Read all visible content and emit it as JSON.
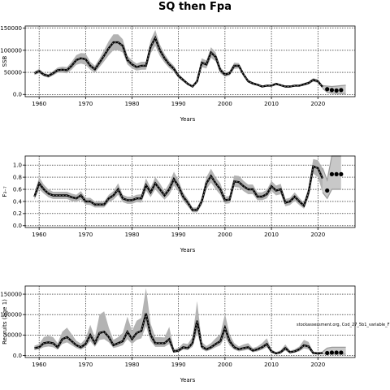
{
  "figure": {
    "title": "SQ then Fpa",
    "watermark": "stockassessment.org, Cod_27_5b1_variable_F"
  },
  "chart_data": [
    {
      "type": "line",
      "name": "ssb-panel",
      "xlabel": "Years",
      "ylabel": "SSB",
      "xlim": [
        1957,
        2028
      ],
      "ylim": [
        -5000,
        155000
      ],
      "xticks": [
        1960,
        1970,
        1980,
        1990,
        2000,
        2010,
        2020
      ],
      "yticks": [
        0,
        50000,
        100000,
        150000
      ],
      "grid": true,
      "x": [
        1959,
        1960,
        1961,
        1962,
        1963,
        1964,
        1965,
        1966,
        1967,
        1968,
        1969,
        1970,
        1971,
        1972,
        1973,
        1974,
        1975,
        1976,
        1977,
        1978,
        1979,
        1980,
        1981,
        1982,
        1983,
        1984,
        1985,
        1986,
        1987,
        1988,
        1989,
        1990,
        1991,
        1992,
        1993,
        1994,
        1995,
        1996,
        1997,
        1998,
        1999,
        2000,
        2001,
        2002,
        2003,
        2004,
        2005,
        2006,
        2007,
        2008,
        2009,
        2010,
        2011,
        2012,
        2013,
        2014,
        2015,
        2016,
        2017,
        2018,
        2019,
        2020,
        2021
      ],
      "estimate": [
        48000,
        53000,
        45000,
        42000,
        48000,
        55000,
        56000,
        55000,
        65000,
        78000,
        82000,
        80000,
        65000,
        57000,
        72000,
        88000,
        105000,
        118000,
        118000,
        110000,
        78000,
        68000,
        62000,
        65000,
        65000,
        108000,
        128000,
        100000,
        82000,
        68000,
        58000,
        42000,
        33000,
        24000,
        18000,
        30000,
        72000,
        68000,
        95000,
        85000,
        55000,
        45000,
        48000,
        65000,
        65000,
        45000,
        30000,
        25000,
        22000,
        18000,
        20000,
        20000,
        24000,
        21000,
        18000,
        18000,
        20000,
        20000,
        23000,
        26000,
        33000,
        30000,
        17000
      ],
      "lower": [
        44000,
        48000,
        41000,
        38000,
        43000,
        49000,
        49000,
        48000,
        56000,
        67000,
        70000,
        67000,
        56000,
        49000,
        62000,
        75000,
        89000,
        100000,
        100000,
        95000,
        68000,
        59000,
        54000,
        56000,
        56000,
        93000,
        110000,
        87000,
        72000,
        60000,
        51000,
        37000,
        29000,
        21000,
        16000,
        26000,
        62000,
        59000,
        83000,
        75000,
        48000,
        40000,
        43000,
        58000,
        59000,
        41000,
        27000,
        22000,
        20000,
        16000,
        18000,
        18000,
        22000,
        19000,
        16000,
        16000,
        18000,
        18000,
        20000,
        23000,
        29000,
        26000,
        14000
      ],
      "upper": [
        52000,
        58000,
        49000,
        46000,
        53000,
        61000,
        63000,
        62000,
        74000,
        89000,
        94000,
        93000,
        74000,
        65000,
        82000,
        101000,
        121000,
        136000,
        136000,
        125000,
        88000,
        77000,
        70000,
        74000,
        74000,
        123000,
        146000,
        113000,
        92000,
        76000,
        65000,
        47000,
        37000,
        27000,
        20000,
        34000,
        82000,
        77000,
        107000,
        95000,
        62000,
        50000,
        53000,
        72000,
        71000,
        49000,
        33000,
        28000,
        24000,
        20000,
        22000,
        22000,
        26000,
        23000,
        20000,
        20000,
        22000,
        22000,
        26000,
        29000,
        37000,
        34000,
        20000
      ],
      "forecast": {
        "x": [
          2021,
          2022,
          2023,
          2024,
          2025,
          2026
        ],
        "median": [
          17000,
          12000,
          10000,
          9000,
          10000,
          11000
        ],
        "lower": [
          14000,
          5000,
          3000,
          2000,
          2000,
          2000
        ],
        "upper": [
          20000,
          19000,
          18000,
          19000,
          20000,
          21000
        ],
        "points_x": [
          2022,
          2023,
          2024,
          2025
        ],
        "points_y": [
          12000,
          10000,
          9000,
          10000
        ]
      }
    },
    {
      "type": "line",
      "name": "f-panel",
      "xlabel": "Years",
      "ylabel": "F₃₋₇",
      "xlim": [
        1957,
        2028
      ],
      "ylim": [
        -0.03,
        1.15
      ],
      "xticks": [
        1960,
        1970,
        1980,
        1990,
        2000,
        2010,
        2020
      ],
      "yticks": [
        0.0,
        0.2,
        0.4,
        0.6,
        0.8,
        1.0
      ],
      "grid": true,
      "x": [
        1959,
        1960,
        1961,
        1962,
        1963,
        1964,
        1965,
        1966,
        1967,
        1968,
        1969,
        1970,
        1971,
        1972,
        1973,
        1974,
        1975,
        1976,
        1977,
        1978,
        1979,
        1980,
        1981,
        1982,
        1983,
        1984,
        1985,
        1986,
        1987,
        1988,
        1989,
        1990,
        1991,
        1992,
        1993,
        1994,
        1995,
        1996,
        1997,
        1998,
        1999,
        2000,
        2001,
        2002,
        2003,
        2004,
        2005,
        2006,
        2007,
        2008,
        2009,
        2010,
        2011,
        2012,
        2013,
        2014,
        2015,
        2016,
        2017,
        2018,
        2019,
        2020,
        2021
      ],
      "estimate": [
        0.48,
        0.7,
        0.6,
        0.53,
        0.5,
        0.5,
        0.5,
        0.5,
        0.47,
        0.45,
        0.5,
        0.4,
        0.4,
        0.35,
        0.35,
        0.35,
        0.45,
        0.5,
        0.6,
        0.45,
        0.42,
        0.42,
        0.45,
        0.45,
        0.67,
        0.55,
        0.7,
        0.6,
        0.5,
        0.6,
        0.77,
        0.65,
        0.48,
        0.38,
        0.26,
        0.26,
        0.4,
        0.7,
        0.82,
        0.7,
        0.6,
        0.42,
        0.43,
        0.73,
        0.72,
        0.65,
        0.6,
        0.6,
        0.48,
        0.48,
        0.52,
        0.65,
        0.58,
        0.6,
        0.38,
        0.4,
        0.48,
        0.4,
        0.33,
        0.55,
        0.98,
        0.95,
        0.78
      ],
      "lower": [
        0.43,
        0.6,
        0.53,
        0.47,
        0.44,
        0.44,
        0.44,
        0.44,
        0.41,
        0.39,
        0.43,
        0.35,
        0.34,
        0.3,
        0.3,
        0.3,
        0.39,
        0.43,
        0.51,
        0.39,
        0.36,
        0.36,
        0.39,
        0.38,
        0.58,
        0.47,
        0.6,
        0.51,
        0.43,
        0.51,
        0.66,
        0.56,
        0.41,
        0.32,
        0.22,
        0.22,
        0.34,
        0.6,
        0.71,
        0.6,
        0.51,
        0.36,
        0.37,
        0.64,
        0.63,
        0.57,
        0.52,
        0.52,
        0.42,
        0.42,
        0.45,
        0.57,
        0.5,
        0.52,
        0.32,
        0.34,
        0.41,
        0.34,
        0.28,
        0.46,
        0.86,
        0.8,
        0.55
      ],
      "upper": [
        0.53,
        0.8,
        0.68,
        0.6,
        0.56,
        0.56,
        0.56,
        0.56,
        0.53,
        0.51,
        0.57,
        0.46,
        0.46,
        0.4,
        0.4,
        0.4,
        0.51,
        0.57,
        0.7,
        0.51,
        0.48,
        0.48,
        0.51,
        0.52,
        0.78,
        0.63,
        0.8,
        0.7,
        0.57,
        0.7,
        0.89,
        0.75,
        0.55,
        0.44,
        0.3,
        0.3,
        0.46,
        0.8,
        0.94,
        0.8,
        0.7,
        0.48,
        0.49,
        0.83,
        0.82,
        0.74,
        0.68,
        0.68,
        0.55,
        0.55,
        0.59,
        0.74,
        0.66,
        0.69,
        0.44,
        0.46,
        0.55,
        0.46,
        0.38,
        0.64,
        1.1,
        1.08,
        0.95
      ],
      "forecast": {
        "x": [
          2021,
          2022,
          2023,
          2024,
          2025
        ],
        "median": [
          0.78,
          0.58,
          0.85,
          0.85,
          0.85
        ],
        "lower": [
          0.55,
          0.45,
          0.6,
          0.6,
          0.6
        ],
        "upper": [
          0.95,
          0.75,
          1.15,
          1.15,
          1.15
        ],
        "points_x": [
          2022,
          2023,
          2024,
          2025
        ],
        "points_y": [
          0.58,
          0.85,
          0.85,
          0.85
        ]
      }
    },
    {
      "type": "line",
      "name": "recruits-panel",
      "xlabel": "Years",
      "ylabel": "Recruits (age 1)",
      "xlim": [
        1957,
        2028
      ],
      "ylim": [
        -5000,
        170000
      ],
      "xticks": [
        1960,
        1970,
        1980,
        1990,
        2000,
        2010,
        2020
      ],
      "yticks": [
        0,
        50000,
        100000,
        150000
      ],
      "grid": true,
      "x": [
        1959,
        1960,
        1961,
        1962,
        1963,
        1964,
        1965,
        1966,
        1967,
        1968,
        1969,
        1970,
        1971,
        1972,
        1973,
        1974,
        1975,
        1976,
        1977,
        1978,
        1979,
        1980,
        1981,
        1982,
        1983,
        1984,
        1985,
        1986,
        1987,
        1988,
        1989,
        1990,
        1991,
        1992,
        1993,
        1994,
        1995,
        1996,
        1997,
        1998,
        1999,
        2000,
        2001,
        2002,
        2003,
        2004,
        2005,
        2006,
        2007,
        2008,
        2009,
        2010,
        2011,
        2012,
        2013,
        2014,
        2015,
        2016,
        2017,
        2018,
        2019,
        2020,
        2021
      ],
      "estimate": [
        18000,
        20000,
        30000,
        32000,
        30000,
        20000,
        40000,
        45000,
        35000,
        25000,
        20000,
        28000,
        50000,
        30000,
        55000,
        58000,
        45000,
        25000,
        30000,
        35000,
        58000,
        40000,
        55000,
        60000,
        103000,
        50000,
        30000,
        30000,
        30000,
        40000,
        10000,
        12000,
        20000,
        18000,
        30000,
        85000,
        22000,
        15000,
        20000,
        28000,
        35000,
        68000,
        35000,
        20000,
        15000,
        18000,
        20000,
        12000,
        15000,
        20000,
        28000,
        10000,
        5000,
        8000,
        18000,
        8000,
        10000,
        15000,
        25000,
        22000,
        6000,
        5000,
        6000
      ],
      "lower": [
        13000,
        15000,
        20000,
        22000,
        20000,
        14000,
        28000,
        32000,
        25000,
        18000,
        14000,
        20000,
        35000,
        21000,
        38000,
        40000,
        32000,
        18000,
        21000,
        25000,
        40000,
        28000,
        38000,
        42000,
        72000,
        35000,
        21000,
        21000,
        21000,
        28000,
        7000,
        8000,
        14000,
        13000,
        21000,
        55000,
        15000,
        10000,
        14000,
        20000,
        25000,
        45000,
        24000,
        14000,
        10000,
        12000,
        14000,
        8000,
        10000,
        14000,
        20000,
        7000,
        3000,
        5000,
        12000,
        5000,
        7000,
        10000,
        17000,
        15000,
        4000,
        3000,
        4000
      ],
      "upper": [
        24000,
        28000,
        45000,
        48000,
        45000,
        30000,
        58000,
        68000,
        52000,
        36000,
        29000,
        41000,
        75000,
        44000,
        100000,
        108000,
        68000,
        38000,
        45000,
        55000,
        95000,
        60000,
        85000,
        92000,
        165000,
        78000,
        45000,
        45000,
        44000,
        70000,
        15000,
        18000,
        30000,
        28000,
        45000,
        133000,
        33000,
        23000,
        30000,
        42000,
        52000,
        102000,
        52000,
        30000,
        22000,
        27000,
        30000,
        18000,
        22000,
        30000,
        42000,
        15000,
        8000,
        13000,
        27000,
        12000,
        15000,
        22000,
        38000,
        33000,
        9000,
        8000,
        9000
      ],
      "forecast": {
        "x": [
          2021,
          2022,
          2023,
          2024,
          2025,
          2026
        ],
        "median": [
          6000,
          6000,
          7000,
          7000,
          7000,
          7000
        ],
        "lower": [
          4000,
          3000,
          3000,
          3000,
          3000,
          3000
        ],
        "upper": [
          9000,
          18000,
          20000,
          20000,
          20000,
          20000
        ],
        "points_x": [
          2022,
          2023,
          2024,
          2025
        ],
        "points_y": [
          6000,
          7000,
          7000,
          7000
        ]
      }
    }
  ]
}
